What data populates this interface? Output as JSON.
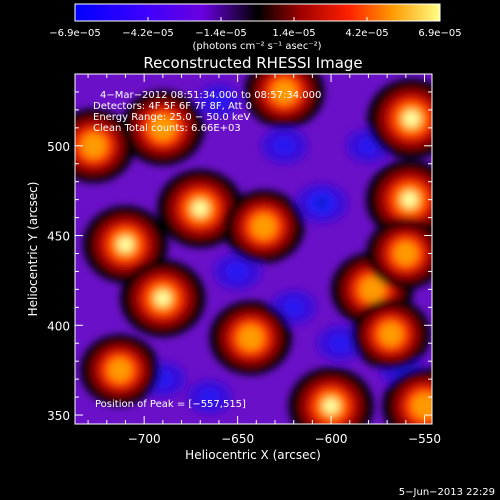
{
  "chart_data": {
    "type": "heatmap",
    "title": "Reconstructed RHESSI Image",
    "xlabel": "Heliocentric X (arcsec)",
    "ylabel": "Heliocentric Y (arcsec)",
    "xlim": [
      -737,
      -546
    ],
    "ylim": [
      345,
      540
    ],
    "xticks": [
      -700,
      -650,
      -600,
      -550
    ],
    "xtick_labels": [
      "−700",
      "−650",
      "−600",
      "−550"
    ],
    "yticks": [
      350,
      400,
      450,
      500
    ],
    "ytick_labels": [
      "350",
      "400",
      "450",
      "500"
    ],
    "colorbar": {
      "min": -6.9e-05,
      "max": 6.9e-05,
      "tick_labels": [
        "−6.9e−05",
        "−4.2e−05",
        "−1.4e−05",
        "1.4e−05",
        "4.2e−05",
        "6.9e−05"
      ],
      "unit_label": "(photons cm⁻² s⁻¹ asec⁻²)"
    },
    "annotations": {
      "time_range": "4−Mar−2012 08:51:34.000 to 08:57:34.000",
      "detectors": "Detectors: 4F 5F 6F 7F 8F, Att 0",
      "energy": "Energy Range: 25.0 − 50.0 keV",
      "clean": "Clean    Total counts: 6.66E+03",
      "peak": "Position of Peak = [−557,515]"
    },
    "peak": [
      -557,
      515
    ],
    "bright_regions": [
      {
        "x": -557,
        "y": 515,
        "level": 1.0
      },
      {
        "x": -558,
        "y": 470,
        "level": 0.95
      },
      {
        "x": -670,
        "y": 465,
        "level": 0.9
      },
      {
        "x": -710,
        "y": 445,
        "level": 0.85
      },
      {
        "x": -727,
        "y": 500,
        "level": 0.7
      },
      {
        "x": -690,
        "y": 510,
        "level": 0.75
      },
      {
        "x": -690,
        "y": 415,
        "level": 0.85
      },
      {
        "x": -636,
        "y": 455,
        "level": 0.65
      },
      {
        "x": -578,
        "y": 420,
        "level": 0.7
      },
      {
        "x": -643,
        "y": 393,
        "level": 0.7
      },
      {
        "x": -600,
        "y": 355,
        "level": 0.85
      },
      {
        "x": -550,
        "y": 355,
        "level": 0.8
      },
      {
        "x": -713,
        "y": 375,
        "level": 0.55
      },
      {
        "x": -568,
        "y": 395,
        "level": 0.55
      },
      {
        "x": -625,
        "y": 530,
        "level": 0.6
      },
      {
        "x": -560,
        "y": 440,
        "level": 0.55
      }
    ],
    "dark_regions": [
      {
        "x": -605,
        "y": 468,
        "level": -1.0
      },
      {
        "x": -625,
        "y": 500,
        "level": -0.7
      },
      {
        "x": -650,
        "y": 430,
        "level": -0.75
      },
      {
        "x": -715,
        "y": 455,
        "level": -0.6
      },
      {
        "x": -690,
        "y": 370,
        "level": -0.65
      },
      {
        "x": -620,
        "y": 410,
        "level": -0.6
      },
      {
        "x": -595,
        "y": 390,
        "level": -0.7
      },
      {
        "x": -580,
        "y": 500,
        "level": -0.55
      },
      {
        "x": -660,
        "y": 525,
        "level": -0.5
      },
      {
        "x": -665,
        "y": 360,
        "level": -0.55
      },
      {
        "x": -562,
        "y": 375,
        "level": -0.5
      }
    ]
  },
  "footer": {
    "date": "5−Jun−2013 22:29"
  }
}
